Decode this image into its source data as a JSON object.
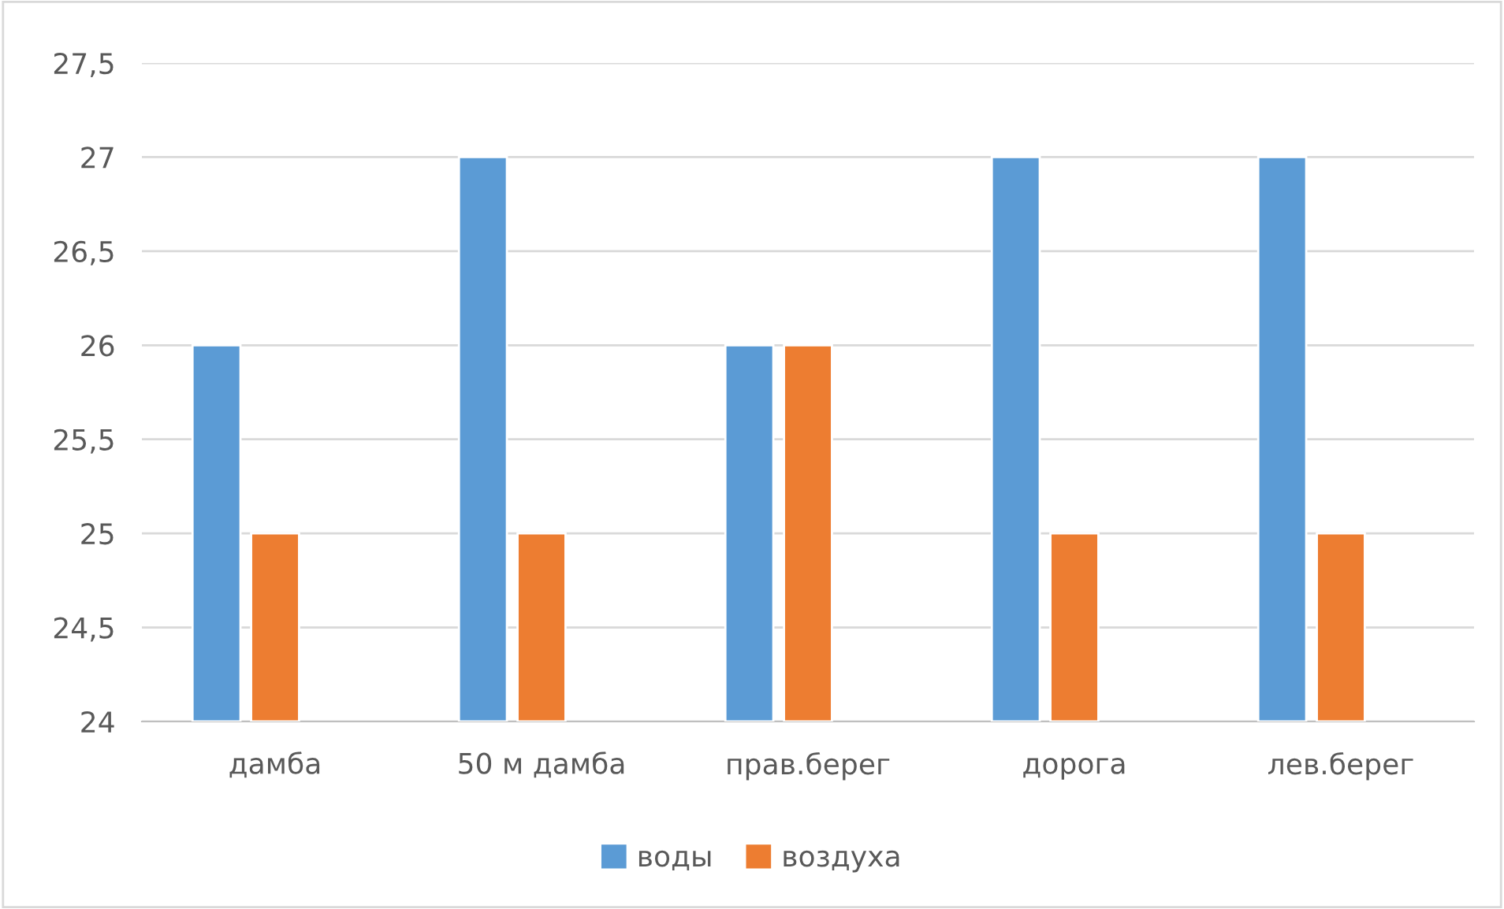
{
  "chart_data": {
    "type": "bar",
    "categories": [
      "дамба",
      "50 м дамба",
      "прав.берег",
      "дорога",
      "лев.берег"
    ],
    "series": [
      {
        "name": "воды",
        "color": "#5b9bd5",
        "values": [
          26,
          27,
          26,
          27,
          27
        ]
      },
      {
        "name": "воздуха",
        "color": "#ed7d31",
        "values": [
          25,
          25,
          26,
          25,
          25
        ]
      }
    ],
    "ylim": [
      24,
      27.5
    ],
    "yticks": [
      24,
      {
        "value": 24.5,
        "label": "24,5"
      },
      25,
      {
        "value": 25.5,
        "label": "25,5"
      },
      26,
      {
        "value": 26.5,
        "label": "26,5"
      },
      27,
      {
        "value": 27.5,
        "label": "27,5"
      }
    ],
    "grid": "y",
    "legend": "bottom"
  }
}
